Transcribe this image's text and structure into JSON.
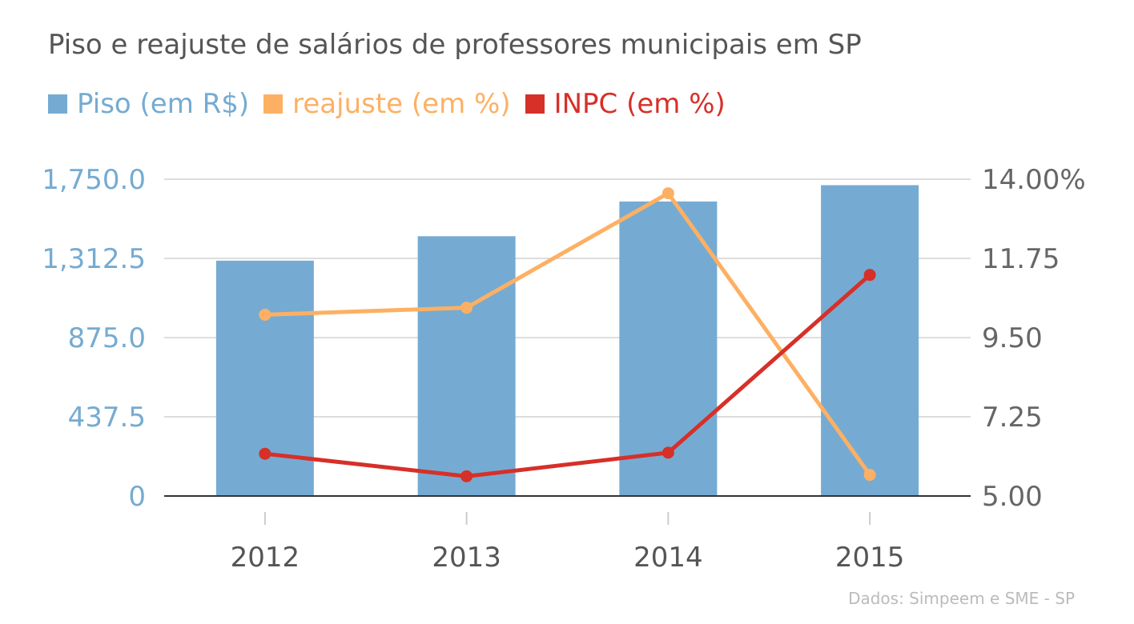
{
  "colors": {
    "piso": "#75abd2",
    "reajuste": "#fdb063",
    "inpc": "#d63029",
    "left_axis_text": "#75abd2",
    "right_axis_text": "#666666",
    "grid": "#dddddd",
    "baseline": "#333333"
  },
  "source": "Dados: Simpeem e SME - SP",
  "chart_data": {
    "type": "bar",
    "title": "Piso e reajuste de salários de professores municipais em SP",
    "categories": [
      "2012",
      "2013",
      "2014",
      "2015"
    ],
    "series": [
      {
        "name": "Piso (em R$)",
        "type": "bar",
        "axis": "left",
        "values": [
          1300,
          1435,
          1627,
          1717
        ]
      },
      {
        "name": "reajuste (em %)",
        "type": "line",
        "axis": "right",
        "values": [
          10.15,
          10.35,
          13.6,
          5.6
        ]
      },
      {
        "name": "INPC (em %)",
        "type": "line",
        "axis": "right",
        "values": [
          6.2,
          5.56,
          6.23,
          11.28
        ]
      }
    ],
    "left_axis": {
      "ylim": [
        0,
        1750
      ],
      "ticks": [
        "0",
        "437.5",
        "875.0",
        "1,312.5",
        "1,750.0"
      ],
      "tick_values": [
        0,
        437.5,
        875,
        1312.5,
        1750
      ]
    },
    "right_axis": {
      "ylim": [
        5,
        14
      ],
      "ticks": [
        "5.00",
        "7.25",
        "9.50",
        "11.75",
        "14.00"
      ],
      "tick_values": [
        5,
        7.25,
        9.5,
        11.75,
        14
      ],
      "unit": "%"
    },
    "grid": true,
    "legend_position": "top-left"
  }
}
